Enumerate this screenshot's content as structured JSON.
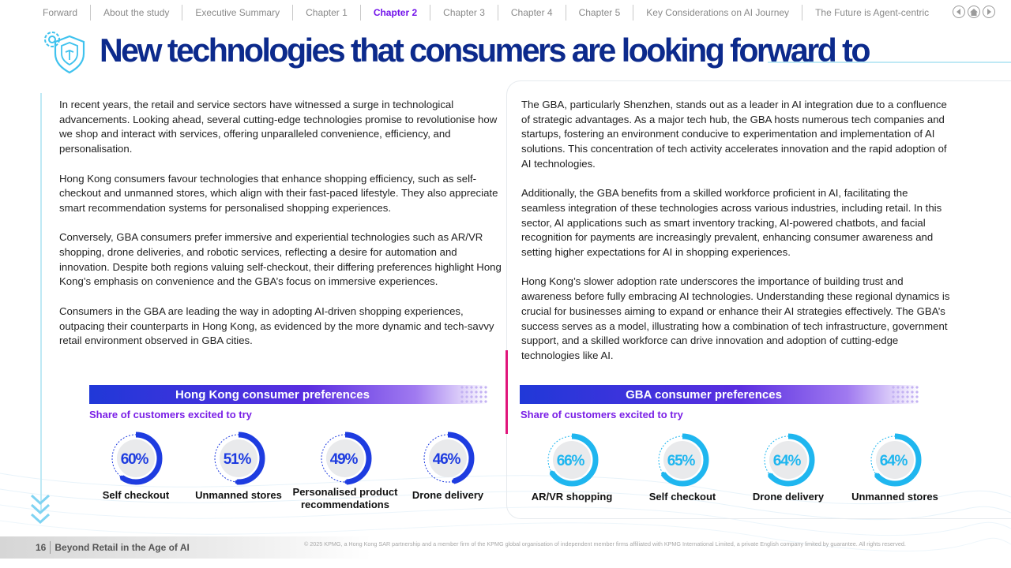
{
  "nav": {
    "items": [
      {
        "label": "Forward"
      },
      {
        "label": "About the study"
      },
      {
        "label": "Executive Summary"
      },
      {
        "label": "Chapter 1"
      },
      {
        "label": "Chapter 2",
        "active": true
      },
      {
        "label": "Chapter 3"
      },
      {
        "label": "Chapter 4"
      },
      {
        "label": "Chapter 5"
      },
      {
        "label": "Key Considerations on AI Journey"
      },
      {
        "label": "The Future is Agent-centric"
      }
    ],
    "controls": [
      "back-icon",
      "home-icon",
      "forward-icon"
    ]
  },
  "page": {
    "title": "New technologies that consumers are looking forward to",
    "title_icon": "shield-gear-icon"
  },
  "left_column": {
    "paragraphs": [
      "In recent years, the retail and service sectors have witnessed a surge in technological advancements. Looking ahead, several cutting-edge technologies promise to revolutionise how we shop and interact with services, offering unparalleled convenience, efficiency, and personalisation.",
      "Hong Kong consumers favour technologies that enhance shopping efficiency, such as self-checkout and unmanned stores, which align with their fast-paced lifestyle. They also appreciate smart recommendation systems for personalised shopping experiences.",
      "Conversely, GBA consumers prefer immersive and experiential technologies such as AR/VR shopping, drone deliveries, and robotic services, reflecting a desire for automation and innovation. Despite both regions valuing self-checkout, their differing preferences highlight Hong Kong’s emphasis on convenience and the GBA’s focus on immersive experiences.",
      "Consumers in the GBA are leading the way in adopting AI-driven shopping experiences, outpacing their counterparts in Hong Kong, as evidenced by the more dynamic and tech-savvy retail environment observed in GBA cities."
    ]
  },
  "right_column": {
    "paragraphs": [
      "The GBA, particularly Shenzhen, stands out as a leader in AI integration due to a confluence of strategic advantages. As a major tech hub, the GBA hosts numerous tech companies and startups, fostering an environment conducive to experimentation and implementation of AI solutions. This concentration of tech activity accelerates innovation and the rapid adoption of AI technologies.",
      "Additionally, the GBA benefits from a skilled workforce proficient in AI, facilitating the seamless integration of these technologies across various industries, including retail. In this sector, AI applications such as smart inventory tracking, AI-powered chatbots, and facial recognition for payments are increasingly prevalent, enhancing consumer awareness and setting higher expectations for AI in shopping experiences.",
      "Hong Kong’s slower adoption rate underscores the importance of building trust and awareness before fully embracing AI technologies. Understanding these regional dynamics is crucial for businesses aiming to expand or enhance their AI strategies effectively. The GBA’s success serves as a model, illustrating how a combination of tech infrastructure, government support, and a skilled workforce can drive innovation and adoption of cutting-edge technologies like AI."
    ]
  },
  "hk_panel": {
    "title": "Hong Kong consumer preferences",
    "subtitle": "Share of customers excited to try",
    "color": "#1e3ce0"
  },
  "gba_panel": {
    "title": "GBA consumer preferences",
    "subtitle": "Share of customers excited to try",
    "color": "#1fb6ef"
  },
  "chart_data": [
    {
      "type": "donut",
      "title": "Hong Kong consumer preferences",
      "categories": [
        "Self checkout",
        "Unmanned stores",
        "Personalised product recommendations",
        "Drone delivery"
      ],
      "values": [
        60,
        51,
        49,
        46
      ],
      "labels": [
        "60%",
        "51%",
        "49%",
        "46%"
      ],
      "unit": "%"
    },
    {
      "type": "donut",
      "title": "GBA consumer preferences",
      "categories": [
        "AR/VR shopping",
        "Self checkout",
        "Drone delivery",
        "Unmanned stores"
      ],
      "values": [
        66,
        65,
        64,
        64
      ],
      "labels": [
        "66%",
        "65%",
        "64%",
        "64%"
      ],
      "unit": "%"
    }
  ],
  "footer": {
    "page_number": "16",
    "publication": "Beyond Retail in the Age of AI",
    "copyright": "© 2025 KPMG, a Hong Kong SAR partnership and a member firm of the KPMG global organisation of independent member firms affiliated with KPMG International Limited, a private English company limited by guarantee. All rights reserved."
  }
}
